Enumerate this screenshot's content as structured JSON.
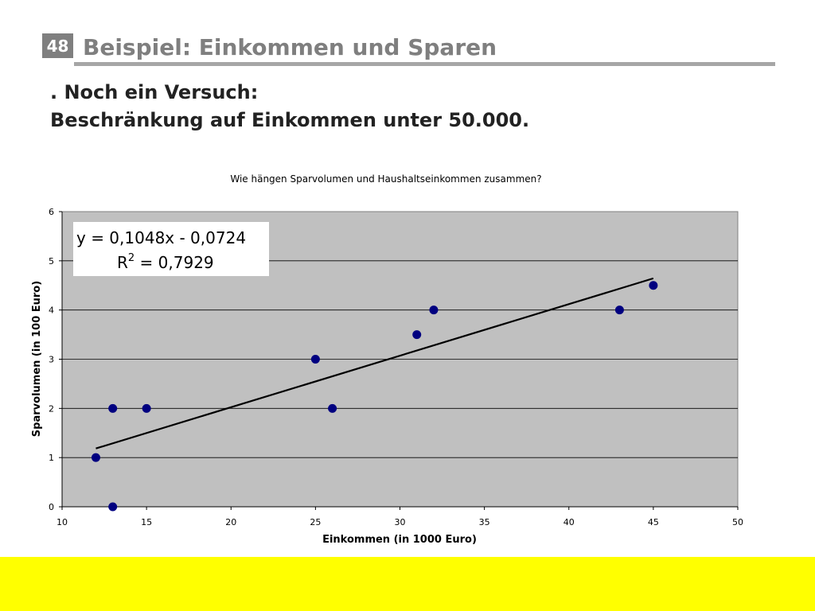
{
  "slide": {
    "number": "48",
    "title": "Beispiel: Einkommen und Sparen",
    "line1": ". Noch ein Versuch:",
    "line2": "Beschränkung auf Einkommen unter 50.000."
  },
  "colors": {
    "plot_background": "#c0c0c0",
    "marker": "#000080",
    "footer": "#ffff00",
    "title_gray": "#7f7f7f"
  },
  "chart_data": {
    "type": "scatter",
    "title": "Wie hängen Sparvolumen und Haushaltseinkommen zusammen?",
    "xlabel": "Einkommen (in 1000 Euro)",
    "ylabel": "Sparvolumen (in 100 Euro)",
    "xlim": [
      10,
      50
    ],
    "ylim": [
      0,
      6
    ],
    "xticks": [
      10,
      15,
      20,
      25,
      30,
      35,
      40,
      45,
      50
    ],
    "yticks": [
      0,
      1,
      2,
      3,
      4,
      5,
      6
    ],
    "grid": "horizontal",
    "legend": "none",
    "series": [
      {
        "points": [
          {
            "x": 12,
            "y": 1
          },
          {
            "x": 13,
            "y": 2
          },
          {
            "x": 13,
            "y": 0
          },
          {
            "x": 15,
            "y": 2
          },
          {
            "x": 25,
            "y": 3
          },
          {
            "x": 26,
            "y": 2
          },
          {
            "x": 31,
            "y": 3.5
          },
          {
            "x": 32,
            "y": 4
          },
          {
            "x": 43,
            "y": 4
          },
          {
            "x": 45,
            "y": 4.5
          }
        ]
      }
    ],
    "trendline": {
      "type": "linear",
      "slope": 0.1048,
      "intercept": -0.0724,
      "x_range": [
        12,
        45
      ],
      "equation_text": "y = 0,1048x - 0,0724",
      "r2_prefix": "R",
      "r2_superscript": "2",
      "r2_suffix": " = 0,7929"
    }
  }
}
